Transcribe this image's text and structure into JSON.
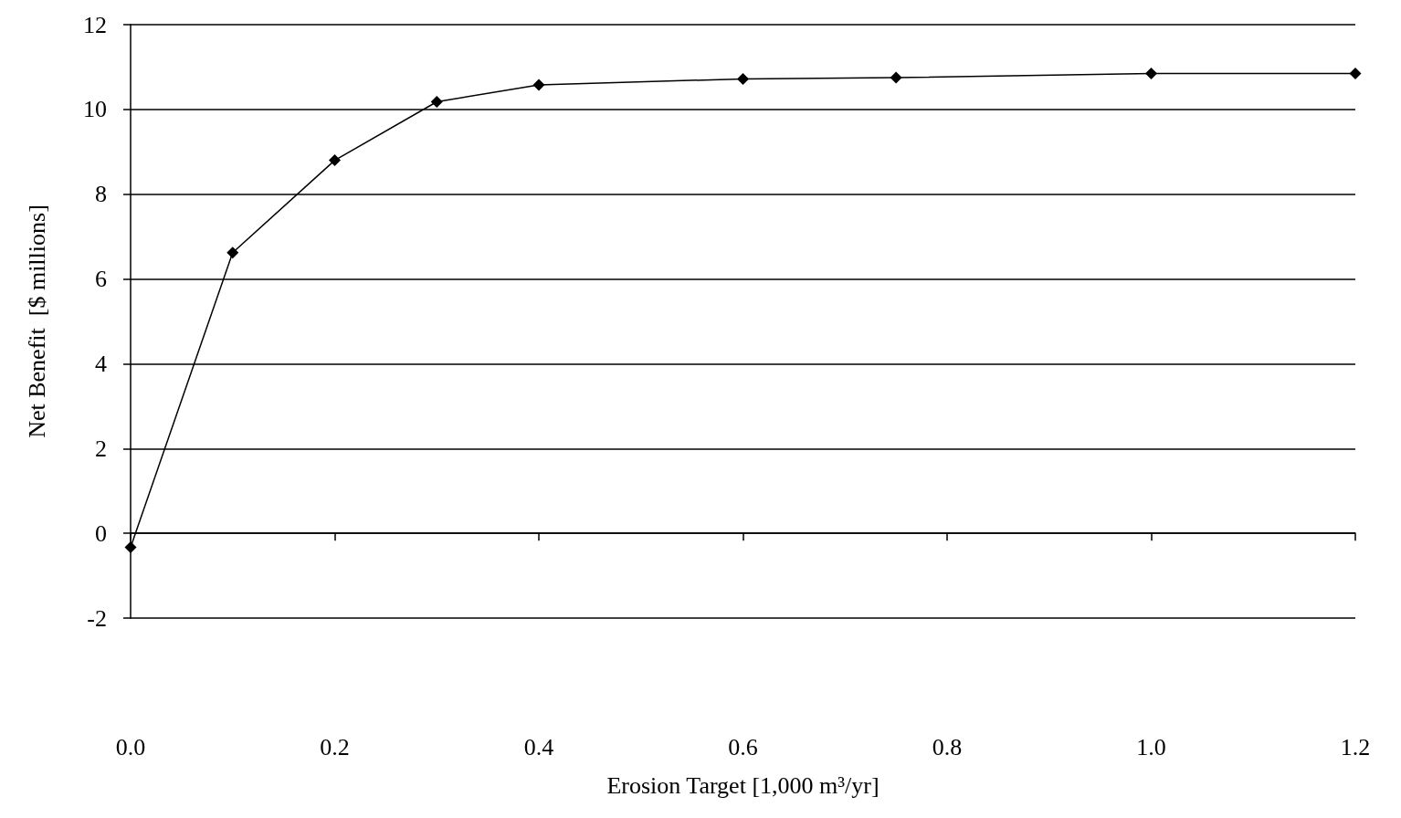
{
  "chart_data": {
    "type": "line",
    "xlabel": "Erosion Target [1,000 m³/yr]",
    "ylabel": "Net Benefit  [$ millions]",
    "x": [
      0,
      0.1,
      0.2,
      0.3,
      0.4,
      0.6,
      0.75,
      1.0,
      1.2
    ],
    "series": [
      {
        "color": "#000000",
        "values": [
          -0.33,
          6.62,
          8.8,
          10.18,
          10.58,
          10.72,
          10.75,
          10.85,
          10.85
        ]
      }
    ],
    "xlim": [
      0,
      1.2
    ],
    "xticks": [
      {
        "value": 0,
        "label": "0.0"
      },
      0.2,
      0.4,
      0.6,
      0.8,
      {
        "value": 1,
        "label": "1.0"
      },
      1.2
    ],
    "ylim": [
      -2,
      12
    ],
    "yticks": [
      -2,
      0,
      2,
      4,
      6,
      8,
      10,
      12
    ],
    "grid": "y",
    "marker": "diamond",
    "line_style": "solid"
  }
}
